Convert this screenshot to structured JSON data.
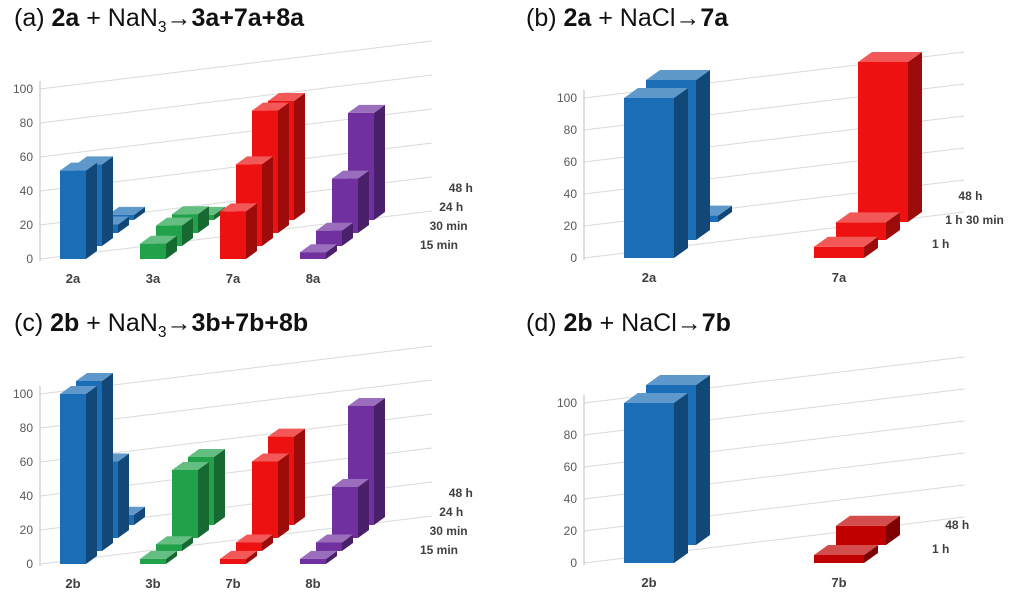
{
  "figure": {
    "description": "Four 3D bar charts of reaction yields over time",
    "grid_color": "#d9d9d9",
    "axis_color": "#bfbfbf"
  },
  "panels": [
    {
      "id": "a",
      "title_text": "(a) 2a + NaN₃→3a+7a+8a",
      "title_segments": [
        {
          "text": "(a) "
        },
        {
          "text": "2a",
          "bold": true
        },
        {
          "text": " + NaN"
        },
        {
          "text": "3",
          "sub": true
        },
        {
          "text": "→"
        },
        {
          "text": "3a+7a+8a",
          "bold": true
        }
      ],
      "chart_data": {
        "type": "bar",
        "projection": "3d",
        "title": "(a) 2a + NaN₃→3a+7a+8a",
        "categories": [
          "2a",
          "3a",
          "7a",
          "8a"
        ],
        "category_colors": [
          "#1b6db6",
          "#22a14b",
          "#ee1111",
          "#7030a0"
        ],
        "series": [
          "15 min",
          "30 min",
          "24 h",
          "48 h"
        ],
        "values": {
          "2a": [
            52,
            48,
            5,
            3
          ],
          "3a": [
            9,
            12,
            11,
            3
          ],
          "7a": [
            28,
            48,
            72,
            70
          ],
          "8a": [
            4,
            9,
            32,
            63
          ]
        },
        "yticks": [
          0,
          20,
          40,
          60,
          80,
          100
        ],
        "ylim": [
          0,
          100
        ],
        "depth_axis_labels_top_to_bottom": [
          "48 h",
          "24 h",
          "30 min",
          "15 min"
        ]
      }
    },
    {
      "id": "b",
      "title_text": "(b) 2a + NaCl→7a",
      "title_segments": [
        {
          "text": "(b) "
        },
        {
          "text": "2a",
          "bold": true
        },
        {
          "text": " + NaCl→"
        },
        {
          "text": "7a",
          "bold": true
        }
      ],
      "chart_data": {
        "type": "bar",
        "projection": "3d",
        "title": "(b) 2a + NaCl→7a",
        "categories": [
          "2a",
          "7a"
        ],
        "category_colors": [
          "#1b6db6",
          "#ee1111"
        ],
        "series": [
          "1 h",
          "1 h 30 min",
          "48 h"
        ],
        "values": {
          "2a": [
            100,
            100,
            4
          ],
          "7a": [
            7,
            11,
            100
          ]
        },
        "yticks": [
          0,
          20,
          40,
          60,
          80,
          100
        ],
        "ylim": [
          0,
          100
        ],
        "depth_axis_labels_top_to_bottom": [
          "48 h",
          "1 h 30 min",
          "1 h"
        ]
      }
    },
    {
      "id": "c",
      "title_text": "(c) 2b + NaN₃→3b+7b+8b",
      "title_segments": [
        {
          "text": "(c) "
        },
        {
          "text": "2b",
          "bold": true
        },
        {
          "text": " + NaN"
        },
        {
          "text": "3",
          "sub": true
        },
        {
          "text": "→"
        },
        {
          "text": "3b+7b+8b",
          "bold": true
        }
      ],
      "chart_data": {
        "type": "bar",
        "projection": "3d",
        "title": "(c) 2b + NaN₃→3b+7b+8b",
        "categories": [
          "2b",
          "3b",
          "7b",
          "8b"
        ],
        "category_colors": [
          "#1b6db6",
          "#22a14b",
          "#ee1111",
          "#7030a0"
        ],
        "series": [
          "15 min",
          "30 min",
          "24 h",
          "48 h"
        ],
        "values": {
          "2b": [
            100,
            100,
            45,
            6
          ],
          "3b": [
            3,
            4,
            40,
            40
          ],
          "7b": [
            3,
            5,
            45,
            52
          ],
          "8b": [
            3,
            5,
            30,
            70
          ]
        },
        "yticks": [
          0,
          20,
          40,
          60,
          80,
          100
        ],
        "ylim": [
          0,
          100
        ],
        "depth_axis_labels_top_to_bottom": [
          "48 h",
          "24 h",
          "30 min",
          "15 min"
        ]
      }
    },
    {
      "id": "d",
      "title_text": "(d) 2b + NaCl→7b",
      "title_segments": [
        {
          "text": "(d) "
        },
        {
          "text": "2b",
          "bold": true
        },
        {
          "text": " + NaCl→"
        },
        {
          "text": "7b",
          "bold": true
        }
      ],
      "chart_data": {
        "type": "bar",
        "projection": "3d",
        "title": "(d) 2b + NaCl→7b",
        "categories": [
          "2b",
          "7b"
        ],
        "category_colors": [
          "#1b6db6",
          "#c00000"
        ],
        "series": [
          "1 h",
          "48 h"
        ],
        "values": {
          "2b": [
            100,
            100
          ],
          "7b": [
            5,
            12
          ]
        },
        "yticks": [
          0,
          20,
          40,
          60,
          80,
          100
        ],
        "ylim": [
          0,
          100
        ],
        "depth_axis_labels_top_to_bottom": [
          "48 h",
          "1 h"
        ]
      }
    }
  ]
}
